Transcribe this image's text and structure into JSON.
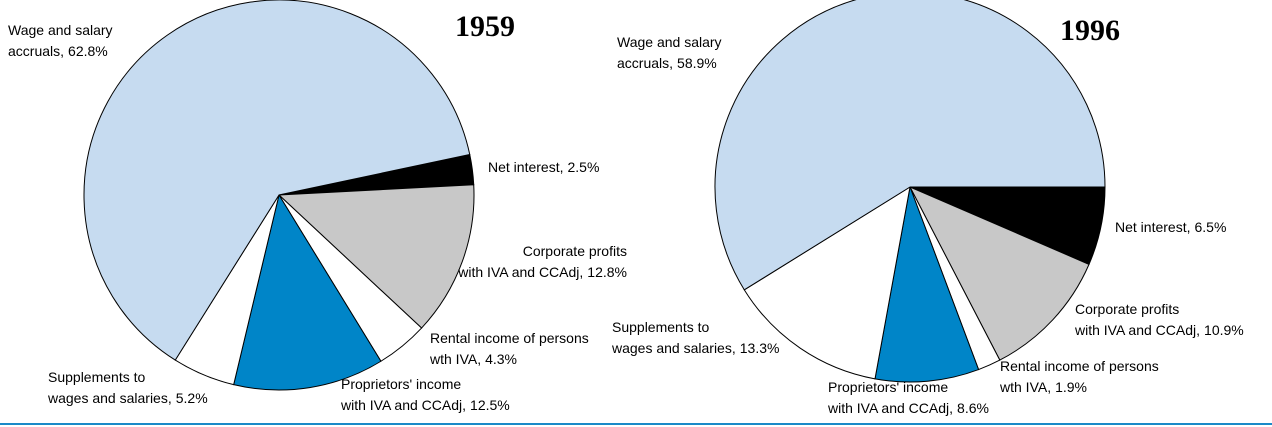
{
  "chart_data": [
    {
      "type": "pie",
      "title": "1959",
      "categories": [
        [
          "Net interest,"
        ],
        [
          "Corporate profits",
          "with IVA and CCAdj,"
        ],
        [
          "Rental income of persons",
          "wth IVA,"
        ],
        [
          "Proprietors' income",
          "with IVA and CCAdj,"
        ],
        [
          "Supplements to",
          "wages and salaries,"
        ],
        [
          "Wage and salary",
          "accruals,"
        ]
      ],
      "values": [
        2.5,
        12.8,
        4.3,
        12.5,
        5.2,
        62.8
      ],
      "value_labels": [
        "2.5%",
        "12.8%",
        "4.3%",
        "12.5%",
        "5.2%",
        "62.8%"
      ],
      "colors": [
        "#000000",
        "#c8c8c8",
        "#ffffff",
        "#0085c8",
        "#ffffff",
        "#c6dbf0"
      ]
    },
    {
      "type": "pie",
      "title": "1996",
      "categories": [
        [
          "Net interest,"
        ],
        [
          "Corporate profits",
          "with IVA and CCAdj,"
        ],
        [
          "Rental income of persons",
          "wth IVA,"
        ],
        [
          "Proprietors' income",
          "with IVA and CCAdj,"
        ],
        [
          "Supplements to",
          "wages and salaries,"
        ],
        [
          "Wage and salary",
          "accruals,"
        ]
      ],
      "values": [
        6.5,
        10.9,
        1.9,
        8.6,
        13.3,
        58.9
      ],
      "value_labels": [
        "6.5%",
        "10.9%",
        "1.9%",
        "8.6%",
        "13.3%",
        "58.9%"
      ],
      "colors": [
        "#000000",
        "#c8c8c8",
        "#ffffff",
        "#0085c8",
        "#ffffff",
        "#c6dbf0"
      ]
    }
  ]
}
